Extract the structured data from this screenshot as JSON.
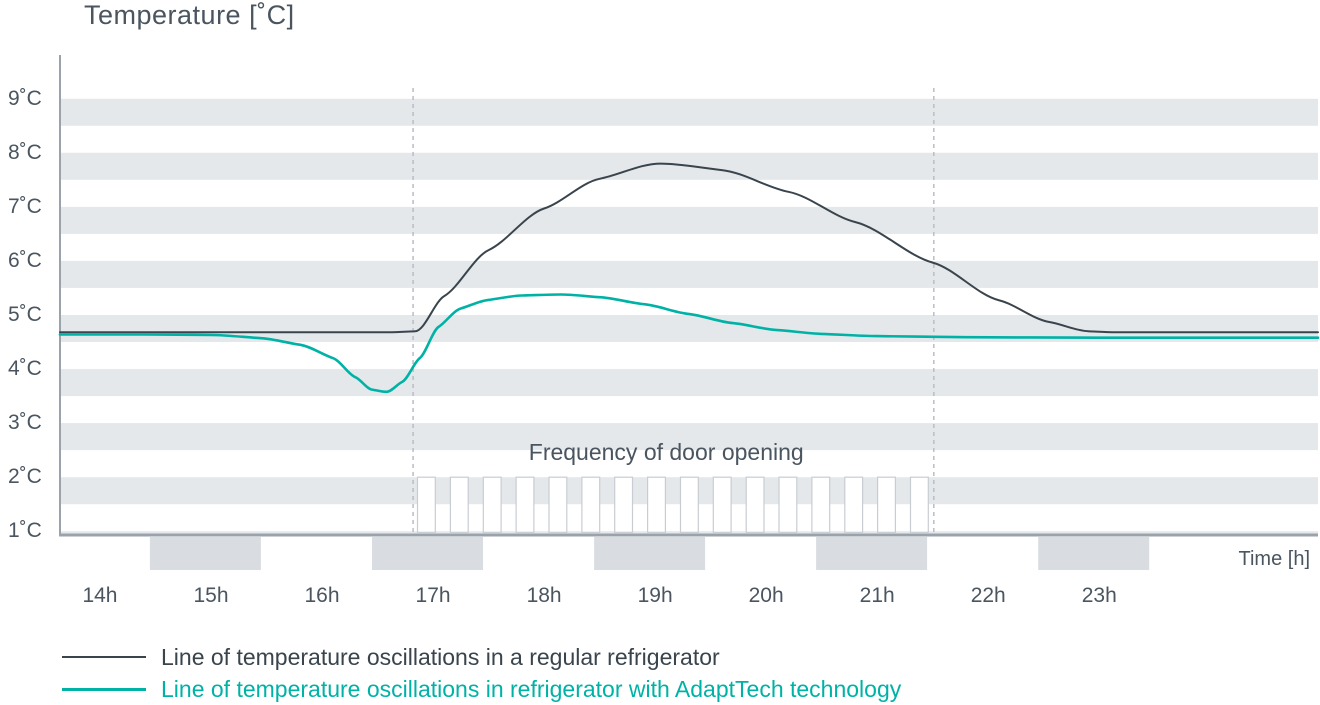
{
  "page": {
    "background": "#ffffff"
  },
  "colors": {
    "stripe": "#e4e8eb",
    "axis": "#9aa3ac",
    "text": "#4a5560",
    "dashed_line": "#b8bec5",
    "pulse_stroke": "#c8cdd3",
    "pulse_fill": "#ffffff",
    "axis_block": "#d9dde1",
    "regular_line": "#39444d",
    "adapttech_line": "#00b2a6"
  },
  "chart_data": {
    "type": "line",
    "title": "Temperature [˚C]",
    "xlabel": "Time [h]",
    "ylabel": "Temperature [˚C]",
    "x_tick_hours": [
      14,
      15,
      16,
      17,
      18,
      19,
      20,
      21,
      22,
      23
    ],
    "x_tick_labels": [
      "14h",
      "15h",
      "16h",
      "17h",
      "18h",
      "19h",
      "20h",
      "21h",
      "22h",
      "23h"
    ],
    "y_tick_values": [
      9,
      8,
      7,
      6,
      5,
      4,
      3,
      2,
      1
    ],
    "y_tick_labels": [
      "9˚C",
      "8˚C",
      "7˚C",
      "6˚C",
      "5˚C",
      "4˚C",
      "3˚C",
      "2˚C",
      "1˚C"
    ],
    "xlim": [
      13.64,
      24.97
    ],
    "ylim": [
      0.93,
      9.81
    ],
    "grid": "horizontal half-degree stripe bands, gray from each whole degree down to half degree",
    "legend_position": "bottom-left",
    "annotation": {
      "text": "Frequency of door opening",
      "x_hour": 19.1,
      "y_temp": 2.45
    },
    "dashed_lines_hours": [
      16.82,
      21.51
    ],
    "door_pulses": {
      "start_hour": 16.86,
      "count": 16,
      "width_hours": 0.16,
      "period_hours": 0.296,
      "top_temp": 2.0,
      "bottom_temp": 0.98
    },
    "axis_shade_blocks_hours": [
      [
        14.45,
        15.45
      ],
      [
        16.45,
        17.45
      ],
      [
        18.45,
        19.45
      ],
      [
        20.45,
        21.45
      ],
      [
        22.45,
        23.45
      ]
    ],
    "series": [
      {
        "name": "regular",
        "label": "Line of temperature oscillations in a regular refrigerator",
        "color": "#39444d",
        "stroke_width": 2,
        "points": [
          [
            13.64,
            4.68
          ],
          [
            14.5,
            4.68
          ],
          [
            15.4,
            4.68
          ],
          [
            16.2,
            4.68
          ],
          [
            16.6,
            4.68
          ],
          [
            16.84,
            4.7
          ],
          [
            17.1,
            5.35
          ],
          [
            17.5,
            6.2
          ],
          [
            18.0,
            6.97
          ],
          [
            18.5,
            7.52
          ],
          [
            19.05,
            7.8
          ],
          [
            19.6,
            7.68
          ],
          [
            20.2,
            7.28
          ],
          [
            20.8,
            6.72
          ],
          [
            21.5,
            5.97
          ],
          [
            22.1,
            5.27
          ],
          [
            22.55,
            4.87
          ],
          [
            22.9,
            4.7
          ],
          [
            23.15,
            4.68
          ],
          [
            23.9,
            4.68
          ],
          [
            24.97,
            4.68
          ]
        ]
      },
      {
        "name": "adapttech",
        "label": "Line of temperature oscillations in refrigerator with AdaptTech technology",
        "color": "#00b2a6",
        "stroke_width": 2.6,
        "points": [
          [
            13.64,
            4.64
          ],
          [
            14.4,
            4.64
          ],
          [
            15.0,
            4.63
          ],
          [
            15.45,
            4.57
          ],
          [
            15.8,
            4.45
          ],
          [
            16.1,
            4.2
          ],
          [
            16.3,
            3.85
          ],
          [
            16.45,
            3.62
          ],
          [
            16.58,
            3.58
          ],
          [
            16.72,
            3.76
          ],
          [
            16.88,
            4.2
          ],
          [
            17.05,
            4.78
          ],
          [
            17.25,
            5.12
          ],
          [
            17.5,
            5.28
          ],
          [
            17.8,
            5.36
          ],
          [
            18.15,
            5.38
          ],
          [
            18.5,
            5.33
          ],
          [
            18.9,
            5.2
          ],
          [
            19.3,
            5.02
          ],
          [
            19.7,
            4.85
          ],
          [
            20.1,
            4.72
          ],
          [
            20.5,
            4.65
          ],
          [
            21.0,
            4.61
          ],
          [
            21.8,
            4.59
          ],
          [
            23.0,
            4.58
          ],
          [
            24.97,
            4.58
          ]
        ]
      }
    ]
  }
}
